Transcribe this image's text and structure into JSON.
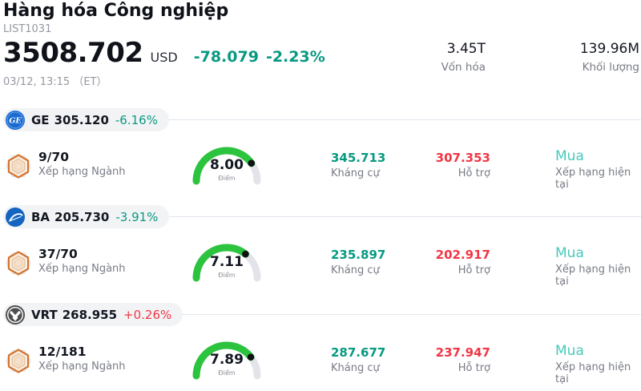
{
  "header": {
    "title": "Hàng hóa Công nghiệp",
    "subtitle": "LIST1031",
    "price": "3508.702",
    "currency": "USD",
    "change_abs": "-78.079",
    "change_pct": "-2.23%",
    "change_color": "#089981",
    "timestamp": "03/12, 13:15 （ET）",
    "stats": [
      {
        "value": "3.45T",
        "label": "Vốn hóa"
      },
      {
        "value": "139.96M",
        "label": "Khối lượng"
      }
    ]
  },
  "colors": {
    "teal": "#089981",
    "red": "#f23645",
    "rating_teal": "#46c9bc",
    "gauge_green": "#2cc33e"
  },
  "rows": [
    {
      "symbol": "GE",
      "price": "305.120",
      "change": "-6.16%",
      "change_color": "#089981",
      "rank": "9/70",
      "rank_label": "Xếp hạng Ngành",
      "gauge": {
        "value": 8.0,
        "value_label": "8.00",
        "unit": "Điểm"
      },
      "resistance": {
        "value": "345.713",
        "label": "Kháng cự",
        "color": "#089981"
      },
      "support": {
        "value": "307.353",
        "label": "Hỗ trợ",
        "color": "#f23645"
      },
      "rating": {
        "value": "Mua",
        "label": "Xếp hạng hiện tại",
        "color": "#46c9bc"
      }
    },
    {
      "symbol": "BA",
      "price": "205.730",
      "change": "-3.91%",
      "change_color": "#089981",
      "rank": "37/70",
      "rank_label": "Xếp hạng Ngành",
      "gauge": {
        "value": 7.11,
        "value_label": "7.11",
        "unit": "Điểm"
      },
      "resistance": {
        "value": "235.897",
        "label": "Kháng cự",
        "color": "#089981"
      },
      "support": {
        "value": "202.917",
        "label": "Hỗ trợ",
        "color": "#f23645"
      },
      "rating": {
        "value": "Mua",
        "label": "Xếp hạng hiện tại",
        "color": "#46c9bc"
      }
    },
    {
      "symbol": "VRT",
      "price": "268.955",
      "change": "+0.26%",
      "change_color": "#f23645",
      "rank": "12/181",
      "rank_label": "Xếp hạng Ngành",
      "gauge": {
        "value": 7.89,
        "value_label": "7.89",
        "unit": "Điểm"
      },
      "resistance": {
        "value": "287.677",
        "label": "Kháng cự",
        "color": "#089981"
      },
      "support": {
        "value": "237.947",
        "label": "Hỗ trợ",
        "color": "#f23645"
      },
      "rating": {
        "value": "Mua",
        "label": "Xếp hạng hiện tại",
        "color": "#46c9bc"
      }
    }
  ]
}
